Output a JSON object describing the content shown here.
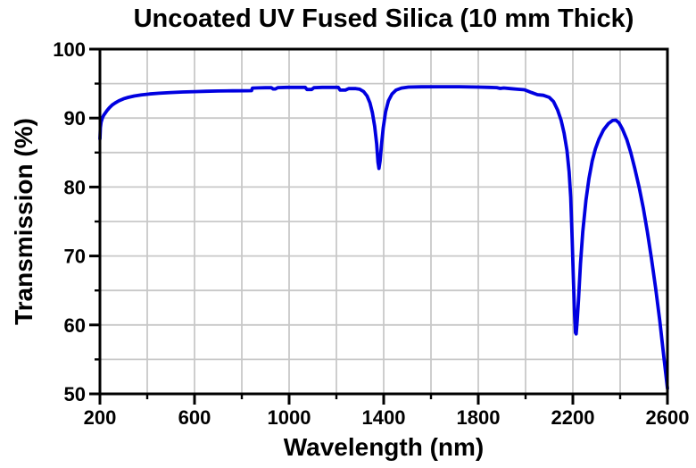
{
  "chart_data": {
    "type": "line",
    "title": "Uncoated UV Fused Silica (10 mm Thick)",
    "xlabel": "Wavelength (nm)",
    "ylabel": "Transmission (%)",
    "xlim": [
      200,
      2600
    ],
    "ylim": [
      50,
      100
    ],
    "x_major_ticks": [
      200,
      600,
      1000,
      1400,
      1800,
      2200,
      2600
    ],
    "x_minor_ticks": [
      400,
      800,
      1200,
      1600,
      2000,
      2400
    ],
    "y_major_ticks": [
      50,
      60,
      70,
      80,
      90,
      100
    ],
    "y_minor_ticks": [
      55,
      65,
      75,
      85,
      95
    ],
    "grid": "on, light gray lines at every major and minor division",
    "legend": "none",
    "colors": {
      "line": "#0000e0",
      "grid": "#c8c8c8",
      "axis": "#000000",
      "background": "#ffffff",
      "text": "#000000"
    },
    "series": [
      {
        "name": "Transmission",
        "points": [
          [
            200,
            87.0
          ],
          [
            202,
            88.6
          ],
          [
            205,
            89.4
          ],
          [
            210,
            90.0
          ],
          [
            216,
            90.4
          ],
          [
            222,
            90.7
          ],
          [
            230,
            91.1
          ],
          [
            240,
            91.5
          ],
          [
            252,
            91.9
          ],
          [
            265,
            92.2
          ],
          [
            280,
            92.5
          ],
          [
            300,
            92.8
          ],
          [
            320,
            93.0
          ],
          [
            345,
            93.2
          ],
          [
            375,
            93.35
          ],
          [
            410,
            93.5
          ],
          [
            450,
            93.6
          ],
          [
            500,
            93.7
          ],
          [
            550,
            93.78
          ],
          [
            600,
            93.84
          ],
          [
            650,
            93.88
          ],
          [
            700,
            93.92
          ],
          [
            760,
            93.95
          ],
          [
            820,
            93.97
          ],
          [
            841,
            93.98
          ],
          [
            845,
            94.35
          ],
          [
            870,
            94.38
          ],
          [
            900,
            94.4
          ],
          [
            924,
            94.42
          ],
          [
            933,
            94.22
          ],
          [
            942,
            94.22
          ],
          [
            952,
            94.42
          ],
          [
            990,
            94.45
          ],
          [
            1040,
            94.45
          ],
          [
            1068,
            94.45
          ],
          [
            1076,
            94.15
          ],
          [
            1095,
            94.15
          ],
          [
            1105,
            94.4
          ],
          [
            1140,
            94.45
          ],
          [
            1190,
            94.45
          ],
          [
            1208,
            94.45
          ],
          [
            1216,
            94.05
          ],
          [
            1238,
            94.05
          ],
          [
            1252,
            94.28
          ],
          [
            1282,
            94.28
          ],
          [
            1298,
            94.18
          ],
          [
            1315,
            93.85
          ],
          [
            1330,
            93.2
          ],
          [
            1342,
            92.2
          ],
          [
            1352,
            90.8
          ],
          [
            1362,
            88.8
          ],
          [
            1370,
            86.3
          ],
          [
            1376,
            83.6
          ],
          [
            1380,
            82.7
          ],
          [
            1385,
            83.8
          ],
          [
            1391,
            86.2
          ],
          [
            1398,
            88.6
          ],
          [
            1408,
            90.9
          ],
          [
            1420,
            92.5
          ],
          [
            1435,
            93.5
          ],
          [
            1452,
            94.05
          ],
          [
            1475,
            94.35
          ],
          [
            1505,
            94.5
          ],
          [
            1560,
            94.53
          ],
          [
            1640,
            94.55
          ],
          [
            1720,
            94.55
          ],
          [
            1800,
            94.5
          ],
          [
            1845,
            94.45
          ],
          [
            1878,
            94.42
          ],
          [
            1893,
            94.3
          ],
          [
            1908,
            94.36
          ],
          [
            1935,
            94.28
          ],
          [
            1965,
            94.18
          ],
          [
            1995,
            94.1
          ],
          [
            2025,
            93.7
          ],
          [
            2050,
            93.4
          ],
          [
            2075,
            93.3
          ],
          [
            2100,
            93.0
          ],
          [
            2118,
            92.4
          ],
          [
            2135,
            91.2
          ],
          [
            2150,
            89.7
          ],
          [
            2163,
            87.8
          ],
          [
            2175,
            85.3
          ],
          [
            2184,
            82.2
          ],
          [
            2191,
            78.5
          ],
          [
            2197,
            72.5
          ],
          [
            2202,
            67.0
          ],
          [
            2207,
            61.5
          ],
          [
            2211,
            58.9
          ],
          [
            2214,
            58.7
          ],
          [
            2218,
            60.5
          ],
          [
            2224,
            63.8
          ],
          [
            2232,
            68.8
          ],
          [
            2242,
            73.5
          ],
          [
            2255,
            78.0
          ],
          [
            2268,
            81.2
          ],
          [
            2282,
            83.8
          ],
          [
            2295,
            85.5
          ],
          [
            2310,
            86.9
          ],
          [
            2330,
            88.3
          ],
          [
            2350,
            89.2
          ],
          [
            2368,
            89.65
          ],
          [
            2382,
            89.7
          ],
          [
            2395,
            89.3
          ],
          [
            2410,
            88.4
          ],
          [
            2428,
            86.9
          ],
          [
            2445,
            85.0
          ],
          [
            2462,
            82.7
          ],
          [
            2480,
            80.0
          ],
          [
            2498,
            76.9
          ],
          [
            2515,
            73.5
          ],
          [
            2532,
            69.7
          ],
          [
            2550,
            65.3
          ],
          [
            2568,
            60.5
          ],
          [
            2585,
            55.3
          ],
          [
            2600,
            50.8
          ]
        ]
      }
    ]
  }
}
